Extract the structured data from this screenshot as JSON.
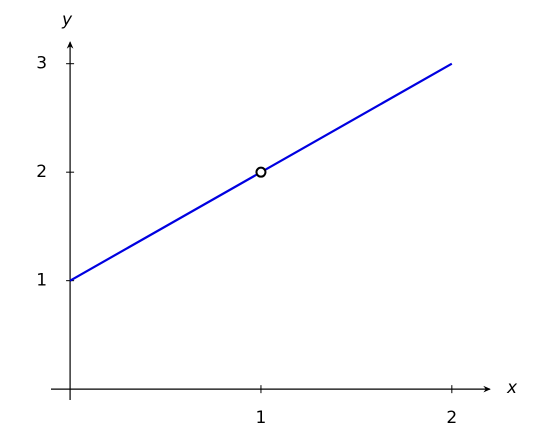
{
  "chart_data": {
    "type": "line",
    "x_label": "x",
    "y_label": "y",
    "xlim": [
      -0.1,
      2.2
    ],
    "ylim": [
      -0.1,
      3.2
    ],
    "xticks": [
      1,
      2
    ],
    "yticks": [
      1,
      2,
      3
    ],
    "series": [
      {
        "color": "#0000e0",
        "x": [
          0,
          1,
          2
        ],
        "values": [
          1,
          2,
          3
        ]
      }
    ],
    "open_points": [
      {
        "x": 1,
        "y": 2
      }
    ]
  }
}
